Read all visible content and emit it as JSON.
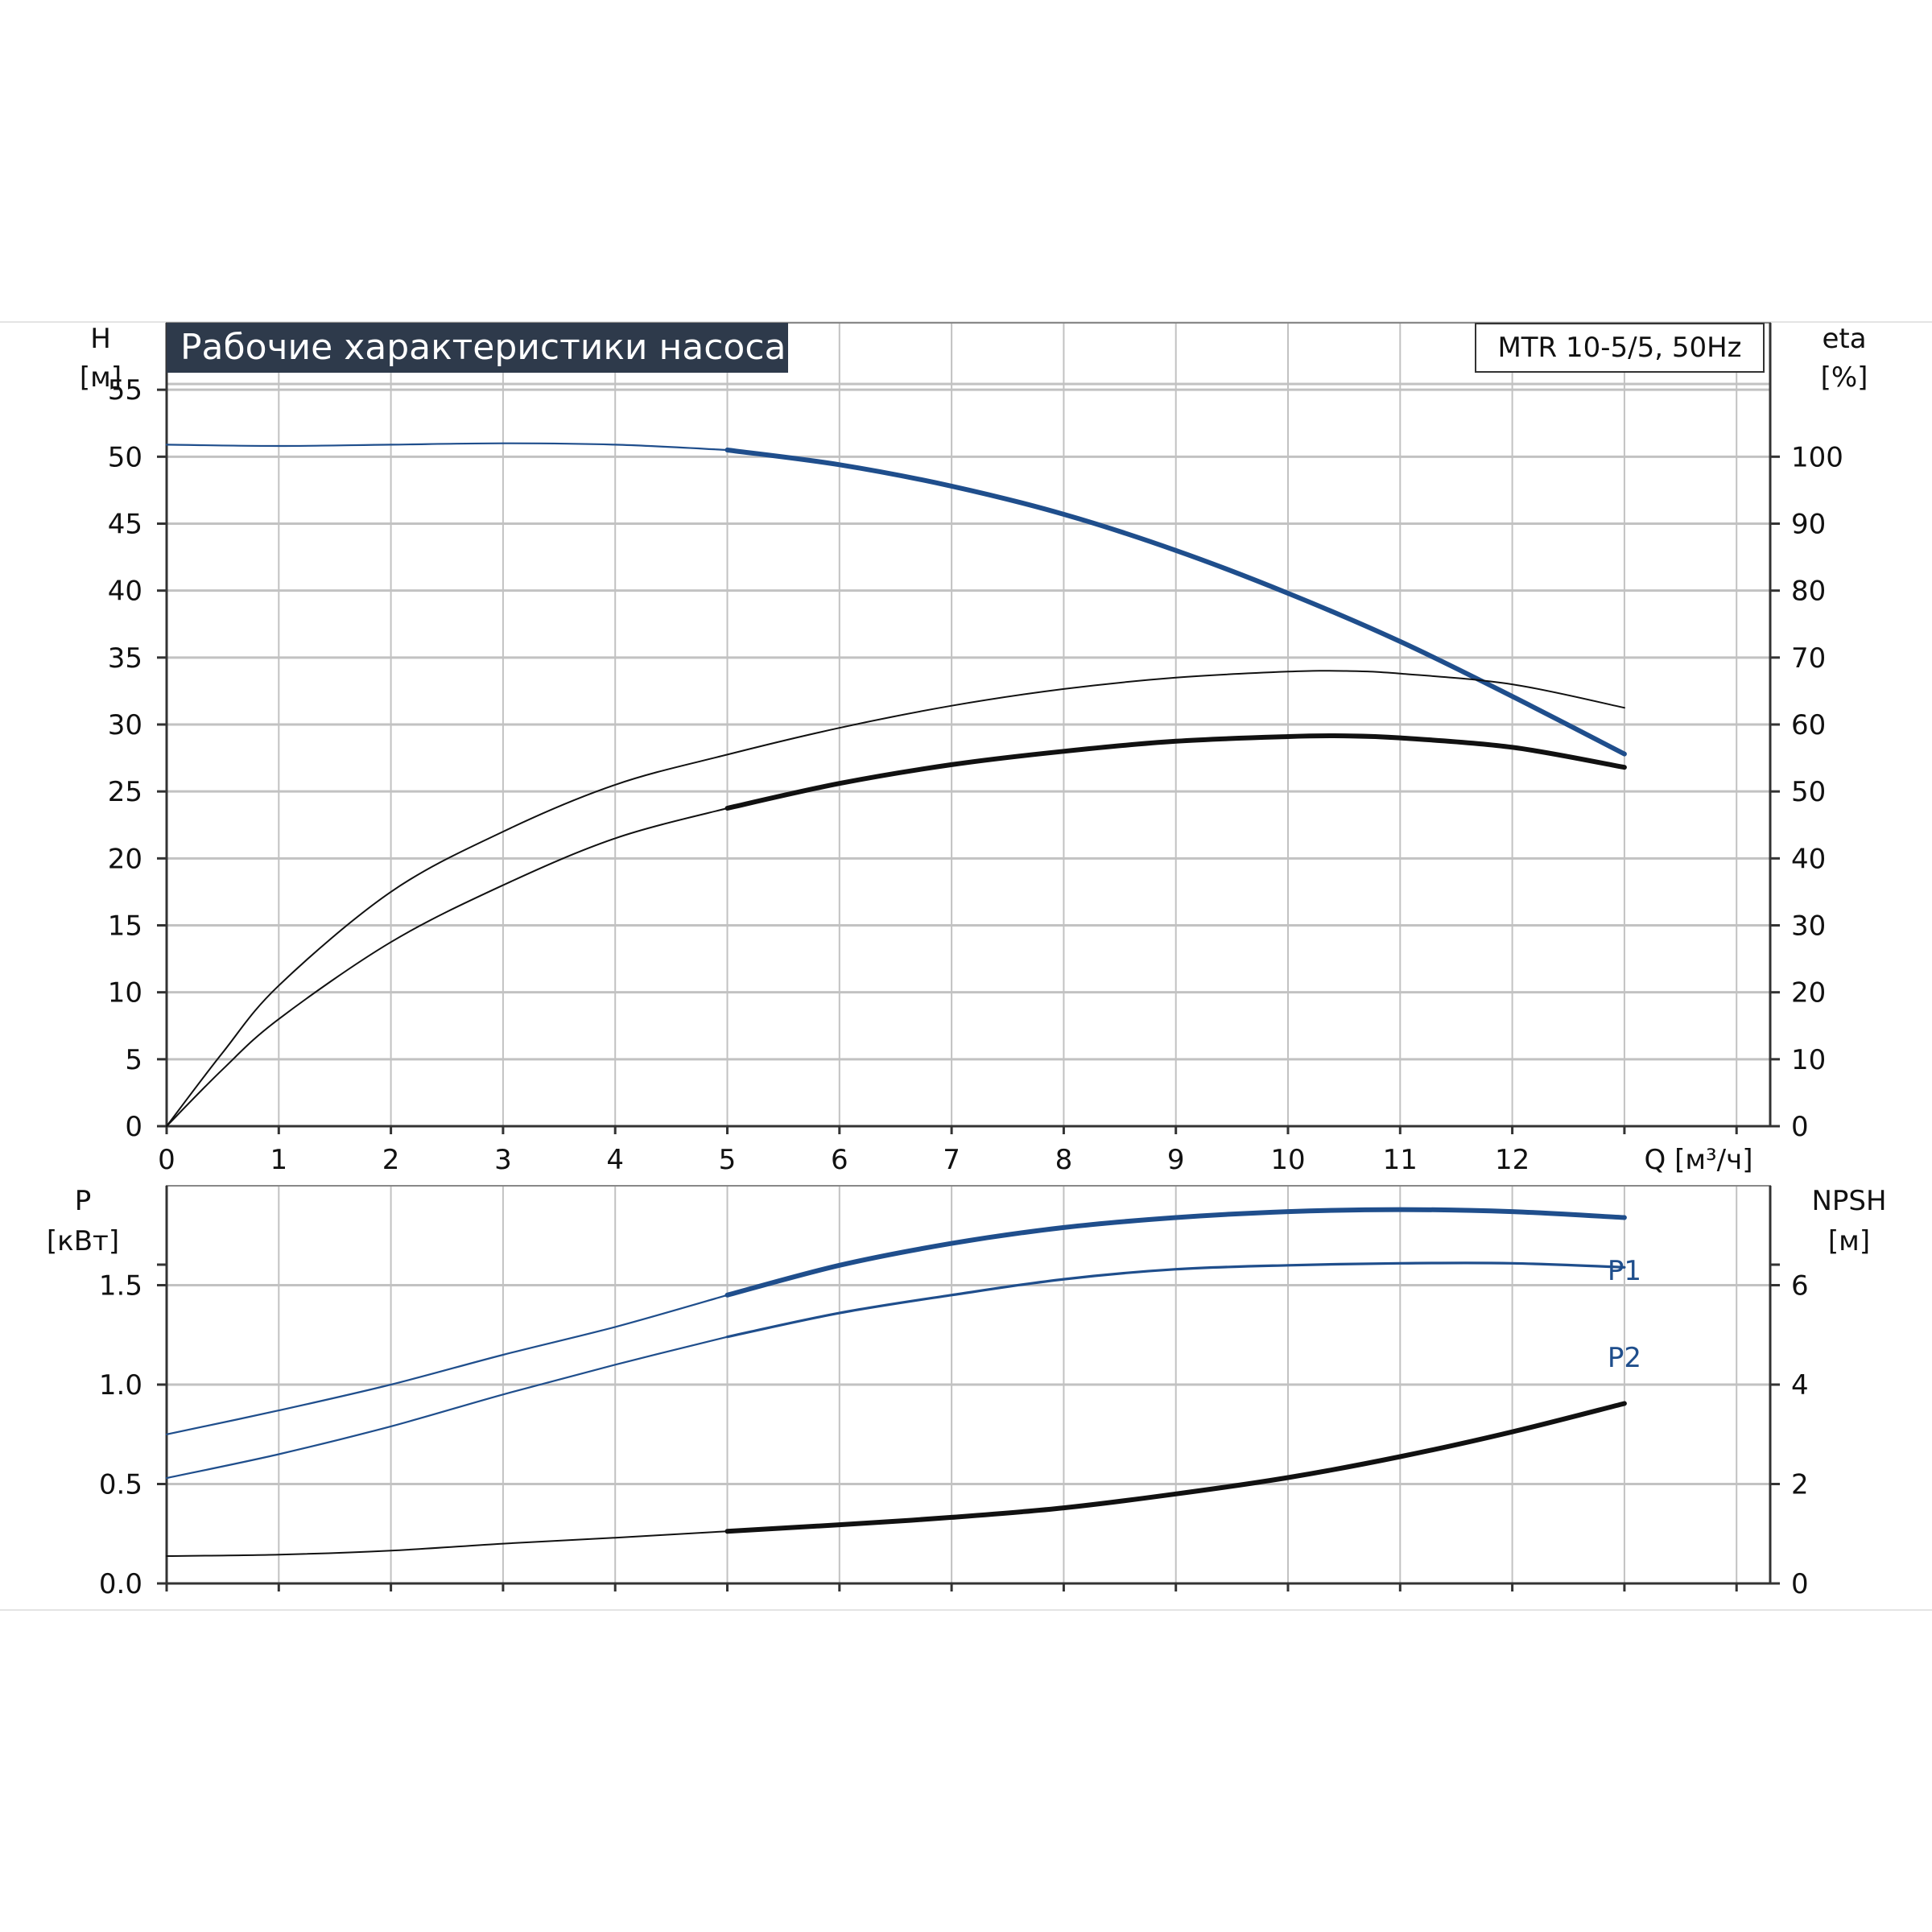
{
  "title": "Рабочие характеристики насоса",
  "model": "MTR 10-5/5, 50Hz",
  "colors": {
    "blue": "#1f4e8c",
    "black": "#111111",
    "grid": "#c2c2c2",
    "title_bg": "#2e3a4b",
    "title_fg": "#ffffff"
  },
  "chart_data": [
    {
      "type": "line",
      "xlabel": "Q [м³/ч]",
      "xlim": [
        0,
        14.3
      ],
      "x_ticks": [
        "0",
        "1",
        "2",
        "3",
        "4",
        "5",
        "6",
        "7",
        "8",
        "9",
        "10",
        "11",
        "12"
      ],
      "left_axis": {
        "label": "H",
        "unit": "[м]",
        "ylim": [
          0,
          60
        ],
        "ticks": [
          "0",
          "5",
          "10",
          "15",
          "20",
          "25",
          "30",
          "35",
          "40",
          "45",
          "50",
          "55"
        ]
      },
      "right_axis": {
        "label": "eta",
        "unit": "[%]",
        "ylim": [
          0,
          120
        ],
        "ticks": [
          "0",
          "10",
          "20",
          "30",
          "40",
          "50",
          "60",
          "70",
          "80",
          "90",
          "100"
        ]
      },
      "grid": true,
      "series": [
        {
          "axis": "left",
          "color": "blue",
          "width": 2.2,
          "x": [
            0,
            1,
            2,
            3,
            4,
            5
          ],
          "y": [
            50.9,
            50.8,
            50.9,
            51.0,
            50.9,
            50.5
          ]
        },
        {
          "axis": "left",
          "color": "blue",
          "width": 6,
          "x": [
            5,
            6,
            7,
            8,
            9,
            10,
            11,
            12,
            13
          ],
          "y": [
            50.5,
            49.4,
            47.8,
            45.7,
            43.0,
            39.8,
            36.2,
            32.1,
            27.8
          ]
        },
        {
          "axis": "right",
          "color": "black",
          "width": 2,
          "x": [
            0,
            0.5,
            1,
            2,
            3,
            4,
            5,
            6,
            7,
            8,
            9,
            10,
            10.5,
            11,
            12,
            13
          ],
          "y": [
            0,
            11,
            21,
            35,
            44,
            51,
            55.5,
            59.5,
            62.8,
            65.3,
            67,
            67.9,
            68,
            67.6,
            66,
            62.5
          ]
        },
        {
          "axis": "right",
          "color": "black",
          "width": 2,
          "x": [
            0,
            0.5,
            1,
            2,
            3,
            4,
            5
          ],
          "y": [
            0,
            8.5,
            16,
            27.5,
            36,
            43,
            47.5
          ]
        },
        {
          "axis": "right",
          "color": "black",
          "width": 6,
          "x": [
            5,
            6,
            7,
            8,
            9,
            10,
            10.5,
            11,
            12,
            13
          ],
          "y": [
            47.5,
            51.2,
            54,
            56,
            57.5,
            58.2,
            58.3,
            58,
            56.6,
            53.6
          ]
        }
      ]
    },
    {
      "type": "line",
      "xlim": [
        0,
        14.3
      ],
      "left_axis": {
        "label": "P",
        "unit": "[кВт]",
        "ylim": [
          0,
          2.0
        ],
        "ticks": [
          "0.0",
          "0.5",
          "1.0",
          "1.5"
        ]
      },
      "right_axis": {
        "label": "NPSH",
        "unit": "[м]",
        "ylim": [
          0,
          8
        ],
        "ticks": [
          "0",
          "2",
          "4",
          "6"
        ]
      },
      "grid": true,
      "series": [
        {
          "name": "P1",
          "axis": "left",
          "color": "blue",
          "width": 2.2,
          "x": [
            0,
            1,
            2,
            3,
            4,
            5
          ],
          "y": [
            0.75,
            0.87,
            1.0,
            1.15,
            1.29,
            1.45
          ]
        },
        {
          "axis": "left",
          "color": "blue",
          "width": 6,
          "x": [
            5,
            6,
            7,
            8,
            9,
            10,
            11,
            12,
            13
          ],
          "y": [
            1.45,
            1.6,
            1.71,
            1.79,
            1.84,
            1.87,
            1.88,
            1.87,
            1.84
          ]
        },
        {
          "name": "P2",
          "axis": "left",
          "color": "blue",
          "width": 2.2,
          "x": [
            0,
            1,
            2,
            3,
            4,
            5
          ],
          "y": [
            0.53,
            0.65,
            0.79,
            0.95,
            1.1,
            1.24
          ]
        },
        {
          "axis": "left",
          "color": "blue",
          "width": 3.2,
          "x": [
            5,
            6,
            7,
            8,
            9,
            10,
            11,
            12,
            13
          ],
          "y": [
            1.24,
            1.36,
            1.45,
            1.53,
            1.58,
            1.6,
            1.61,
            1.61,
            1.59
          ]
        },
        {
          "axis": "right",
          "color": "black",
          "width": 2,
          "x": [
            0,
            1,
            2,
            3,
            4,
            5
          ],
          "y": [
            0.55,
            0.58,
            0.66,
            0.8,
            0.92,
            1.05
          ]
        },
        {
          "axis": "right",
          "color": "black",
          "width": 6,
          "x": [
            5,
            6,
            7,
            8,
            9,
            10,
            11,
            12,
            13
          ],
          "y": [
            1.05,
            1.18,
            1.33,
            1.52,
            1.8,
            2.13,
            2.55,
            3.05,
            3.62
          ]
        }
      ],
      "labels": [
        "P1",
        "P2"
      ]
    }
  ]
}
